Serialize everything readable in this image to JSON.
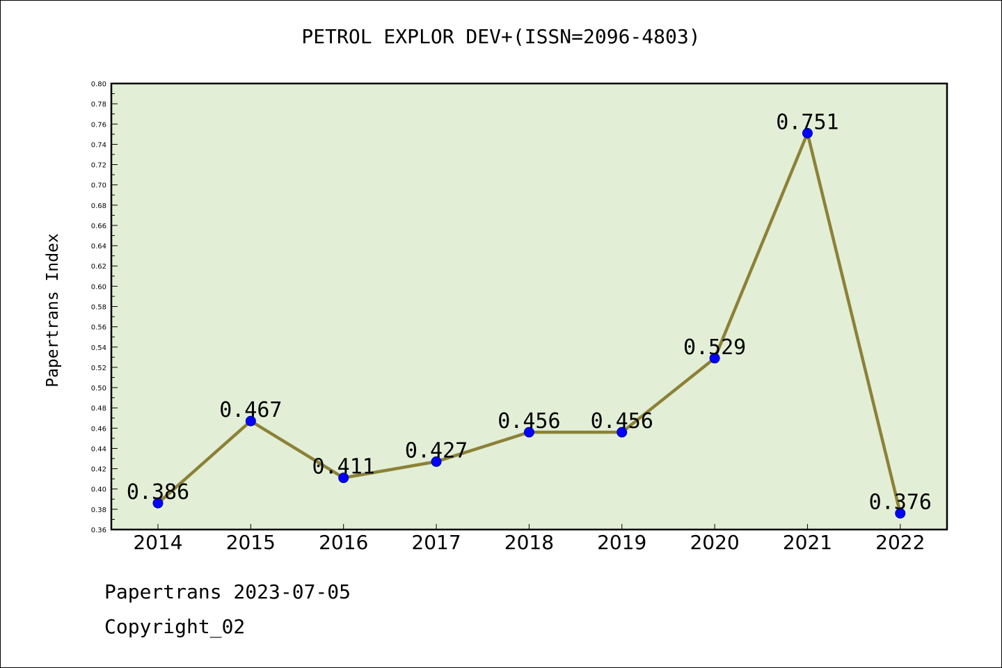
{
  "chart_data": {
    "type": "line",
    "title": "PETROL EXPLOR DEV+(ISSN=2096-4803)",
    "xlabel": "",
    "ylabel": "Papertrans Index",
    "categories": [
      "2014",
      "2015",
      "2016",
      "2017",
      "2018",
      "2019",
      "2020",
      "2021",
      "2022"
    ],
    "series": [
      {
        "values": [
          0.386,
          0.467,
          0.411,
          0.427,
          0.456,
          0.456,
          0.529,
          0.751,
          0.376
        ],
        "labels": [
          "0.386",
          "0.467",
          "0.411",
          "0.427",
          "0.456",
          "0.456",
          "0.529",
          "0.751",
          "0.376"
        ]
      }
    ],
    "ylim": [
      0.36,
      0.8
    ],
    "yticks": [
      "0.36",
      "0.38",
      "0.40",
      "0.42",
      "0.44",
      "0.46",
      "0.48",
      "0.50",
      "0.52",
      "0.54",
      "0.56",
      "0.58",
      "0.60",
      "0.62",
      "0.64",
      "0.66",
      "0.68",
      "0.70",
      "0.72",
      "0.74",
      "0.76",
      "0.78",
      "0.80"
    ],
    "grid": false,
    "colors": {
      "plot_background": "#e2efd6",
      "line": "#8c8137",
      "marker": "#0000ff",
      "marker_edge": "#00008b"
    }
  },
  "footer": {
    "line1": "Papertrans 2023-07-05",
    "line2": "Copyright_02"
  }
}
